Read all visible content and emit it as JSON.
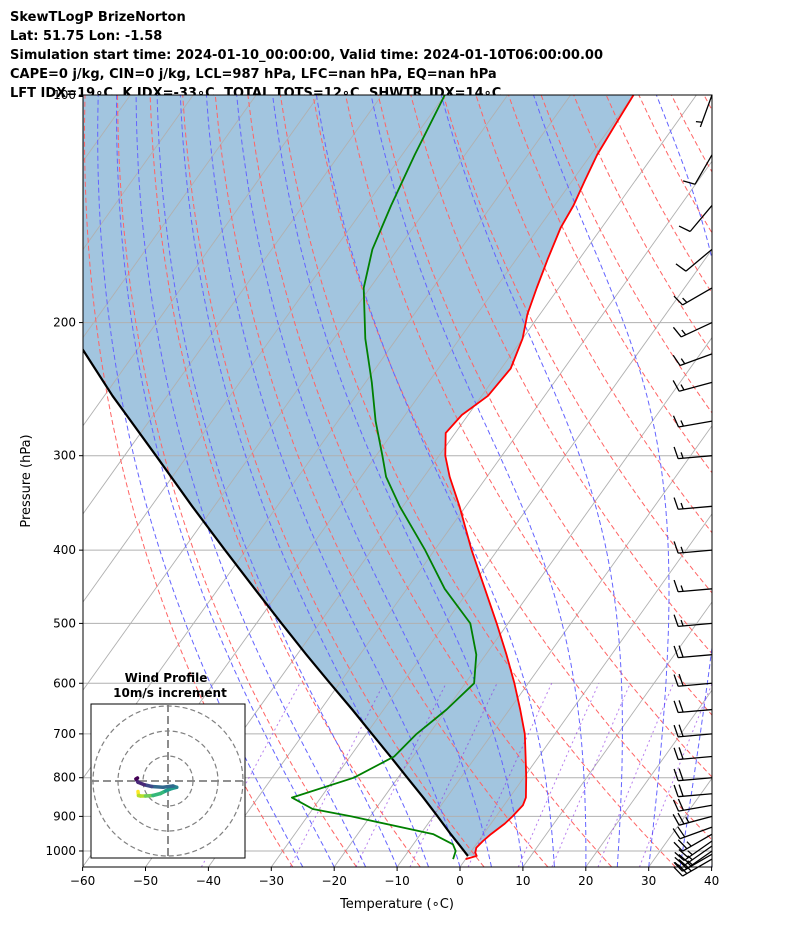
{
  "header": {
    "line1": "SkewTLogP BrizeNorton",
    "line2": "Lat: 51.75   Lon: -1.58",
    "line3": "Simulation start time: 2024-01-10_00:00:00, Valid time: 2024-01-10T06:00:00.00",
    "line4": "CAPE=0 j/kg, CIN=0 j/kg, LCL=987 hPa, LFC=nan hPa, EQ=nan hPa",
    "line5": "LFT IDX=19∘C, K IDX=-33∘C, TOTAL TOTS=12∘C, SHWTR_IDX=14∘C"
  },
  "colors": {
    "temperature": "#ff0000",
    "dewpoint": "#008000",
    "parcel": "#000000",
    "shade": "#a2c5df",
    "dry_adiabats": "#ff6464",
    "moist_adiabats": "#6464ff",
    "mixing_ratio": "#8a2be2",
    "isotherms": "#b0b0b0",
    "grid": "#b0b0b0"
  },
  "chart_data": [
    {
      "type": "line",
      "subtype": "skew-t log-p",
      "title": "",
      "xlabel": "Temperature (∘C)",
      "ylabel": "Pressure (hPa)",
      "xlim": [
        -60,
        40
      ],
      "ylim": [
        1050,
        100
      ],
      "yscale": "log",
      "grid": true,
      "xticks": [
        -60,
        -50,
        -40,
        -30,
        -20,
        -10,
        0,
        10,
        20,
        30,
        40
      ],
      "yticks": [
        100,
        200,
        300,
        400,
        500,
        600,
        700,
        800,
        900,
        1000
      ],
      "ytick_labels": [
        "100",
        "200",
        "300",
        "400",
        "500",
        "600",
        "700",
        "800",
        "900",
        "1000"
      ],
      "xtick_labels": [
        "−60",
        "−50",
        "−40",
        "−30",
        "−20",
        "−10",
        "0",
        "10",
        "20",
        "30",
        "40"
      ],
      "series": [
        {
          "role": "temperature",
          "pressure": [
            1025,
            1015,
            1005,
            990,
            970,
            950,
            920,
            900,
            870,
            850,
            800,
            750,
            700,
            650,
            600,
            550,
            500,
            450,
            400,
            350,
            320,
            300,
            280,
            265,
            250,
            230,
            210,
            195,
            180,
            165,
            150,
            140,
            130,
            120,
            110,
            100
          ],
          "values": [
            0.0,
            1.4,
            0.8,
            0.4,
            0.7,
            1.2,
            2.2,
            2.6,
            3.0,
            2.6,
            0.4,
            -2.1,
            -4.8,
            -8.3,
            -12.2,
            -16.7,
            -21.8,
            -27.6,
            -34.1,
            -41.0,
            -45.9,
            -49.0,
            -51.5,
            -51.0,
            -49.0,
            -48.5,
            -50.0,
            -52.0,
            -53.5,
            -55.0,
            -56.5,
            -57.0,
            -58.0,
            -59.0,
            -59.5,
            -60.0
          ]
        },
        {
          "role": "dewpoint",
          "pressure": [
            1025,
            1000,
            980,
            950,
            900,
            880,
            850,
            800,
            750,
            700,
            650,
            600,
            550,
            500,
            450,
            400,
            350,
            320,
            300,
            270,
            240,
            210,
            180,
            160,
            140,
            120,
            100
          ],
          "values": [
            -2.0,
            -2.5,
            -3.7,
            -8.0,
            -23.0,
            -30.0,
            -34.6,
            -27.0,
            -23.0,
            -22.0,
            -20.0,
            -18.6,
            -21.5,
            -26.0,
            -34.0,
            -41.5,
            -50.5,
            -56.0,
            -59.0,
            -64.0,
            -69.0,
            -75.0,
            -81.0,
            -84.0,
            -86.0,
            -88.0,
            -90.0
          ]
        },
        {
          "role": "parcel",
          "pressure": [
            1015,
            987,
            950,
            900,
            850,
            800,
            750,
            700,
            650,
            600,
            550,
            500,
            450,
            400,
            350,
            300,
            250,
            200,
            150,
            100
          ],
          "values": [
            0.0,
            -2.2,
            -5.2,
            -9.3,
            -13.7,
            -18.5,
            -23.6,
            -29.1,
            -35.0,
            -41.5,
            -48.5,
            -56.0,
            -64.2,
            -73.3,
            -83.5,
            -95.0,
            -108.7,
            -124.5,
            -145.0,
            -173.0
          ]
        }
      ],
      "wind_barbs": {
        "pressure": [
          1025,
          1010,
          1000,
          985,
          970,
          950,
          930,
          900,
          870,
          840,
          800,
          750,
          700,
          650,
          600,
          550,
          500,
          450,
          400,
          350,
          300,
          270,
          240,
          220,
          200,
          180,
          160,
          140,
          120,
          100
        ],
        "speed_kt": [
          25,
          25,
          25,
          25,
          25,
          25,
          20,
          25,
          20,
          20,
          20,
          20,
          20,
          20,
          20,
          20,
          15,
          15,
          15,
          15,
          15,
          15,
          15,
          15,
          15,
          15,
          10,
          10,
          10,
          5
        ],
        "direction_deg": [
          240,
          240,
          235,
          235,
          235,
          240,
          250,
          255,
          260,
          265,
          265,
          265,
          265,
          265,
          265,
          265,
          265,
          265,
          265,
          265,
          265,
          260,
          255,
          250,
          245,
          240,
          230,
          220,
          210,
          200
        ]
      }
    },
    {
      "type": "line",
      "subtype": "hodograph",
      "title": "Wind Profile",
      "subtitle": "10m/s increment",
      "ring_increment_ms": 10,
      "rings": 3,
      "u": [
        -12.0,
        -11.8,
        -11.0,
        -9.0,
        -6.0,
        -3.0,
        -1.0,
        1.5,
        3.5,
        2.0,
        -2.0,
        -6.5,
        -9.5,
        -12.0,
        -12.8,
        -12.2
      ],
      "v": [
        -4.2,
        -5.8,
        -6.0,
        -6.0,
        -5.8,
        -5.0,
        -4.0,
        -3.0,
        -2.5,
        -2.0,
        -2.5,
        -2.2,
        -1.5,
        -0.5,
        0.8,
        1.2
      ],
      "colormap": "viridis"
    }
  ]
}
